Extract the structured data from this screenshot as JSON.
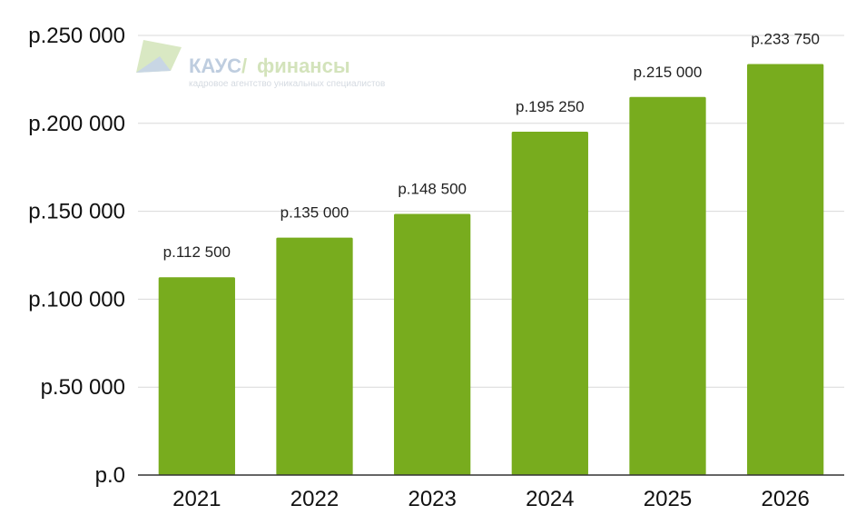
{
  "watermark": {
    "brand": "КАУС",
    "slash": "/",
    "product": "финансы",
    "tagline": "кадровое агентство уникальных специалистов"
  },
  "colors": {
    "bar": "#78ac1e",
    "grid": "#d9d9d9",
    "watermark_brand": "#b8c8dc",
    "watermark_product": "#cfe0b4"
  },
  "chart_data": {
    "type": "bar",
    "categories": [
      "2021",
      "2022",
      "2023",
      "2024",
      "2025",
      "2026"
    ],
    "values": [
      112500,
      135000,
      148500,
      195250,
      215000,
      233750
    ],
    "value_labels": [
      "р.112 500",
      "р.135 000",
      "р.148 500",
      "р.195 250",
      "р.215 000",
      "р.233 750"
    ],
    "y_ticks": [
      0,
      50000,
      100000,
      150000,
      200000,
      250000
    ],
    "y_tick_labels": [
      "р.0",
      "р.50 000",
      "р.100 000",
      "р.150 000",
      "р.200 000",
      "р.250 000"
    ],
    "ylim": [
      0,
      250000
    ],
    "grid": true,
    "title": "",
    "xlabel": "",
    "ylabel": ""
  }
}
